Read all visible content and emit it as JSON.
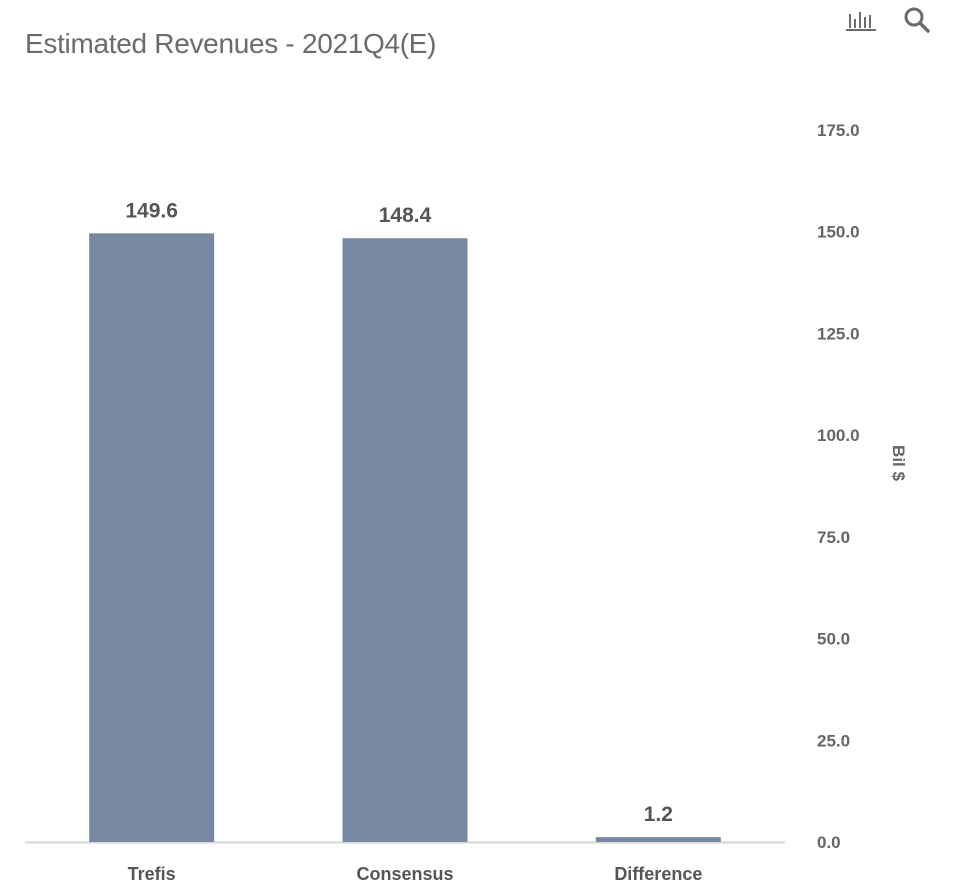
{
  "toolbar": {
    "icons": [
      "bar-chart-icon",
      "search-icon"
    ]
  },
  "chart_data": {
    "type": "bar",
    "title": "Estimated Revenues - 2021Q4(E)",
    "categories": [
      "Trefis",
      "Consensus",
      "Difference"
    ],
    "values": [
      149.6,
      148.4,
      1.2
    ],
    "value_labels": [
      "149.6",
      "148.4",
      "1.2"
    ],
    "ylabel": "Bil $",
    "ylim": [
      0,
      175
    ],
    "yticks": [
      0,
      25,
      50,
      75,
      100,
      125,
      150,
      175
    ],
    "ytick_labels": [
      "0.0",
      "25.0",
      "50.0",
      "75.0",
      "100.0",
      "125.0",
      "150.0",
      "175.0"
    ],
    "y_axis_position": "right",
    "grid": false,
    "bar_color": "#7788a3"
  }
}
